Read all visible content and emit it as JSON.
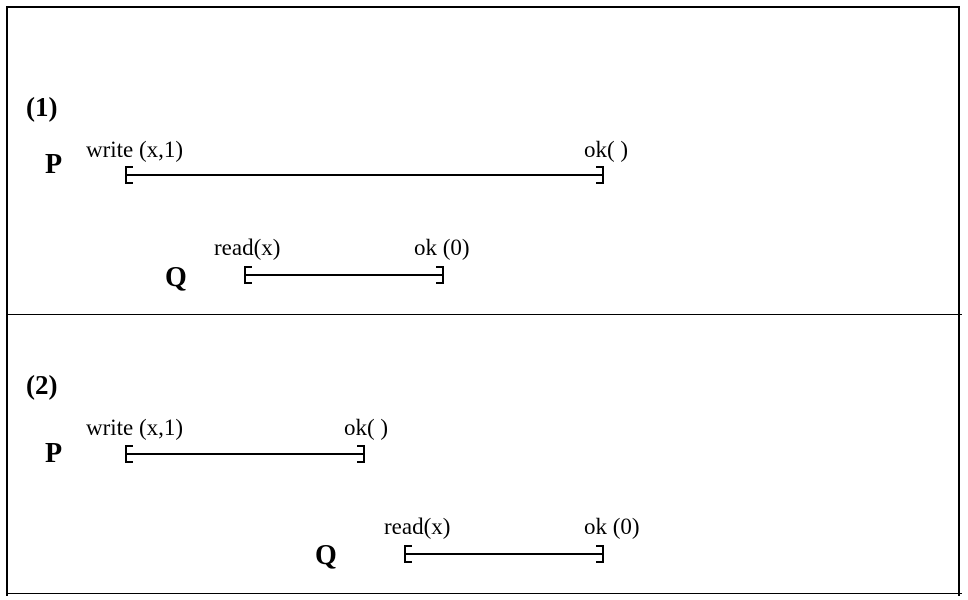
{
  "panels": [
    {
      "label": "(1)",
      "p": {
        "name": "P",
        "invoke": "write (x,1)",
        "response": "ok( )"
      },
      "q": {
        "name": "Q",
        "invoke": "read(x)",
        "response": "ok (0)"
      }
    },
    {
      "label": "(2)",
      "p": {
        "name": "P",
        "invoke": "write (x,1)",
        "response": "ok( )"
      },
      "q": {
        "name": "Q",
        "invoke": "read(x)",
        "response": "ok (0)"
      }
    }
  ]
}
